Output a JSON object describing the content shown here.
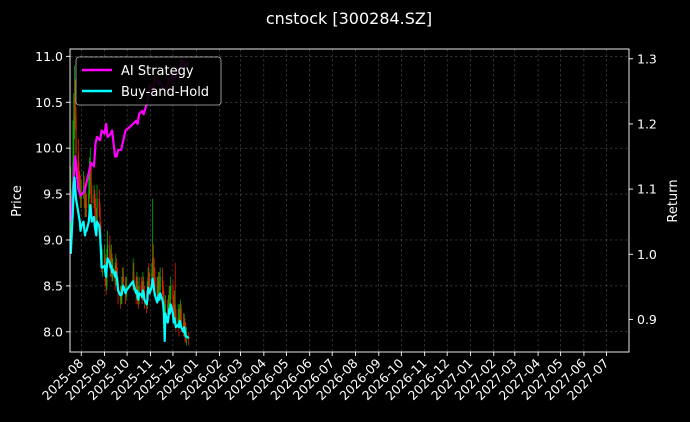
{
  "chart_data": {
    "type": "line",
    "title": "cnstock [300284.SZ]",
    "ylabel": "Price",
    "y2label": "Return",
    "ylim": [
      7.78,
      11.08
    ],
    "y2lim": [
      0.85,
      1.315
    ],
    "yticks": [
      8.0,
      8.5,
      9.0,
      9.5,
      10.0,
      10.5,
      11.0
    ],
    "y2ticks": [
      0.9,
      1.0,
      1.1,
      1.2,
      1.3
    ],
    "xlim": [
      "2025-07-17",
      "2027-07-31"
    ],
    "xticks": [
      "2025-08",
      "2025-09",
      "2025-10",
      "2025-11",
      "2025-12",
      "2026-01",
      "2026-02",
      "2026-03",
      "2026-04",
      "2026-05",
      "2026-06",
      "2026-07",
      "2026-08",
      "2026-09",
      "2026-10",
      "2026-11",
      "2026-12",
      "2027-01",
      "2027-02",
      "2027-03",
      "2027-04",
      "2027-05",
      "2027-06",
      "2027-07"
    ],
    "grid": true,
    "legend_position": "top-left",
    "colors": {
      "up": "#00b000",
      "down": "#e02000",
      "ai": "#ff00ff",
      "bh": "#00ffff",
      "background": "#000000",
      "axis": "#ffffff"
    },
    "price_series": {
      "name": "",
      "x": [
        "2025-07-18",
        "2025-07-21",
        "2025-07-22",
        "2025-07-23",
        "2025-07-24",
        "2025-07-25",
        "2025-07-28",
        "2025-07-29",
        "2025-07-30",
        "2025-07-31",
        "2025-08-01",
        "2025-08-04",
        "2025-08-05",
        "2025-08-06",
        "2025-08-07",
        "2025-08-08",
        "2025-08-11",
        "2025-08-12",
        "2025-08-13",
        "2025-08-14",
        "2025-08-15",
        "2025-08-18",
        "2025-08-19",
        "2025-08-20",
        "2025-08-21",
        "2025-08-22",
        "2025-08-25",
        "2025-08-26",
        "2025-08-27",
        "2025-08-28",
        "2025-08-29",
        "2025-09-01",
        "2025-09-02",
        "2025-09-03",
        "2025-09-04",
        "2025-09-05",
        "2025-09-08",
        "2025-09-09",
        "2025-09-10",
        "2025-09-11",
        "2025-09-12",
        "2025-09-15",
        "2025-09-16",
        "2025-09-17",
        "2025-09-18",
        "2025-09-19",
        "2025-09-22",
        "2025-09-23",
        "2025-09-24",
        "2025-09-25",
        "2025-09-26",
        "2025-09-29",
        "2025-09-30",
        "2025-10-09",
        "2025-10-10",
        "2025-10-13",
        "2025-10-14",
        "2025-10-15",
        "2025-10-16",
        "2025-10-17",
        "2025-10-20",
        "2025-10-21",
        "2025-10-22",
        "2025-10-23",
        "2025-10-24",
        "2025-10-27",
        "2025-10-28",
        "2025-10-29",
        "2025-10-30",
        "2025-10-31",
        "2025-11-03",
        "2025-11-04",
        "2025-11-05",
        "2025-11-06",
        "2025-11-07",
        "2025-11-10",
        "2025-11-11",
        "2025-11-12",
        "2025-11-13",
        "2025-11-14",
        "2025-11-17",
        "2025-11-18",
        "2025-11-19",
        "2025-11-20",
        "2025-11-21",
        "2025-11-24",
        "2025-11-25",
        "2025-11-26",
        "2025-11-27",
        "2025-11-28",
        "2025-12-01",
        "2025-12-02",
        "2025-12-03",
        "2025-12-04",
        "2025-12-05",
        "2025-12-08",
        "2025-12-09",
        "2025-12-10",
        "2025-12-11",
        "2025-12-12",
        "2025-12-15",
        "2025-12-16",
        "2025-12-17",
        "2025-12-18",
        "2025-12-19",
        "2025-12-22"
      ],
      "open": [
        9.05,
        9.55,
        9.85,
        10.25,
        10.55,
        10.35,
        9.95,
        9.75,
        9.65,
        9.55,
        9.45,
        9.5,
        9.6,
        9.45,
        9.35,
        9.4,
        9.35,
        9.5,
        9.7,
        9.8,
        9.5,
        9.4,
        9.5,
        9.35,
        9.3,
        9.15,
        9.45,
        9.35,
        9.15,
        8.95,
        8.75,
        8.75,
        8.8,
        8.6,
        8.5,
        8.75,
        8.95,
        8.8,
        8.7,
        8.8,
        8.65,
        8.7,
        8.55,
        8.75,
        8.6,
        8.55,
        8.4,
        8.35,
        8.4,
        8.45,
        8.6,
        8.55,
        8.4,
        8.5,
        8.65,
        8.55,
        8.4,
        8.55,
        8.4,
        8.35,
        8.5,
        8.45,
        8.4,
        8.55,
        8.45,
        8.35,
        8.3,
        8.45,
        8.6,
        8.55,
        8.5,
        8.65,
        8.8,
        8.7,
        8.6,
        8.5,
        8.4,
        8.5,
        8.55,
        8.45,
        8.6,
        8.5,
        8.4,
        8.25,
        8.2,
        8.3,
        8.2,
        8.3,
        8.4,
        8.35,
        8.5,
        8.35,
        8.25,
        8.3,
        8.2,
        8.1,
        8.15,
        8.1,
        8.2,
        8.25,
        8.1,
        8.05,
        8.1,
        8.0,
        7.95,
        7.95
      ],
      "close": [
        9.55,
        9.85,
        10.25,
        10.55,
        10.35,
        9.95,
        9.75,
        9.65,
        9.55,
        9.45,
        9.5,
        9.6,
        9.45,
        9.35,
        9.4,
        9.35,
        9.5,
        9.7,
        9.8,
        9.5,
        9.4,
        9.5,
        9.35,
        9.3,
        9.15,
        9.45,
        9.35,
        9.15,
        8.95,
        8.75,
        8.75,
        8.8,
        8.6,
        8.5,
        8.75,
        8.95,
        8.8,
        8.7,
        8.8,
        8.65,
        8.7,
        8.55,
        8.75,
        8.6,
        8.55,
        8.4,
        8.35,
        8.4,
        8.45,
        8.6,
        8.55,
        8.4,
        8.5,
        8.65,
        8.55,
        8.4,
        8.55,
        8.4,
        8.35,
        8.5,
        8.45,
        8.4,
        8.55,
        8.45,
        8.35,
        8.3,
        8.45,
        8.6,
        8.55,
        8.5,
        8.65,
        8.8,
        8.7,
        8.6,
        8.5,
        8.4,
        8.5,
        8.55,
        8.45,
        8.6,
        8.5,
        8.4,
        8.25,
        8.2,
        8.3,
        8.2,
        8.3,
        8.4,
        8.35,
        8.5,
        8.35,
        8.25,
        8.3,
        8.2,
        8.1,
        8.15,
        8.1,
        8.2,
        8.25,
        8.1,
        8.05,
        8.1,
        8.0,
        7.95,
        7.95,
        7.92
      ],
      "high": [
        9.8,
        10.3,
        10.6,
        10.9,
        10.75,
        10.45,
        10.1,
        9.85,
        9.75,
        9.7,
        9.65,
        9.75,
        9.7,
        9.55,
        9.55,
        9.5,
        9.7,
        9.9,
        10.0,
        9.85,
        9.6,
        9.6,
        9.55,
        9.45,
        9.35,
        9.6,
        9.55,
        9.4,
        9.2,
        8.95,
        8.9,
        8.95,
        8.85,
        8.65,
        8.9,
        9.1,
        9.05,
        8.9,
        8.95,
        8.85,
        8.8,
        8.75,
        8.85,
        8.8,
        8.7,
        8.6,
        8.5,
        8.5,
        8.6,
        8.7,
        8.7,
        8.6,
        8.6,
        8.8,
        8.75,
        8.6,
        8.65,
        8.6,
        8.5,
        8.6,
        8.6,
        8.55,
        8.65,
        8.6,
        8.5,
        8.45,
        8.55,
        8.7,
        8.75,
        8.65,
        8.75,
        9.45,
        8.95,
        8.8,
        8.7,
        8.6,
        8.6,
        8.65,
        8.65,
        8.7,
        8.7,
        8.55,
        8.45,
        8.35,
        8.4,
        8.35,
        8.4,
        8.5,
        8.5,
        8.6,
        8.55,
        8.4,
        8.45,
        8.75,
        8.25,
        8.3,
        8.25,
        8.3,
        8.35,
        8.3,
        8.2,
        8.2,
        8.15,
        8.1,
        8.05,
        8.0
      ],
      "low": [
        8.9,
        9.45,
        9.75,
        10.1,
        10.2,
        9.85,
        9.65,
        9.55,
        9.45,
        9.35,
        9.35,
        9.45,
        9.35,
        9.25,
        9.25,
        9.25,
        9.3,
        9.45,
        9.6,
        9.4,
        9.3,
        9.35,
        9.25,
        9.2,
        9.05,
        9.1,
        9.25,
        9.05,
        8.85,
        8.65,
        8.6,
        8.65,
        8.5,
        8.4,
        8.45,
        8.7,
        8.7,
        8.6,
        8.6,
        8.55,
        8.55,
        8.45,
        8.5,
        8.5,
        8.45,
        8.3,
        8.25,
        8.3,
        8.3,
        8.4,
        8.45,
        8.3,
        8.35,
        8.45,
        8.45,
        8.3,
        8.35,
        8.3,
        8.25,
        8.3,
        8.35,
        8.3,
        8.35,
        8.35,
        8.25,
        8.2,
        8.25,
        8.4,
        8.45,
        8.4,
        8.45,
        8.6,
        8.55,
        8.5,
        8.4,
        8.3,
        8.35,
        8.4,
        8.35,
        8.4,
        8.4,
        8.3,
        8.15,
        8.1,
        8.15,
        8.1,
        8.15,
        8.25,
        8.25,
        8.3,
        8.25,
        8.15,
        8.15,
        8.1,
        8.0,
        8.05,
        7.95,
        8.05,
        8.1,
        8.0,
        7.95,
        7.95,
        7.9,
        7.88,
        7.85,
        7.85
      ]
    },
    "series": [
      {
        "name": "AI Strategy",
        "axis": "right",
        "x": [
          "2025-07-18",
          "2025-07-22",
          "2025-07-24",
          "2025-07-28",
          "2025-07-31",
          "2025-08-04",
          "2025-08-06",
          "2025-08-08",
          "2025-08-12",
          "2025-08-14",
          "2025-08-18",
          "2025-08-20",
          "2025-08-22",
          "2025-08-26",
          "2025-08-28",
          "2025-09-01",
          "2025-09-03",
          "2025-09-05",
          "2025-09-09",
          "2025-09-11",
          "2025-09-15",
          "2025-09-17",
          "2025-09-19",
          "2025-09-23",
          "2025-09-25",
          "2025-09-29",
          "2025-10-09",
          "2025-10-13",
          "2025-10-15",
          "2025-10-17",
          "2025-10-21",
          "2025-10-23",
          "2025-10-27",
          "2025-10-29",
          "2025-10-31",
          "2025-11-04",
          "2025-11-06",
          "2025-11-10",
          "2025-11-12",
          "2025-11-14",
          "2025-11-18",
          "2025-11-20",
          "2025-11-24",
          "2025-11-26",
          "2025-11-28",
          "2025-12-02",
          "2025-12-04",
          "2025-12-08",
          "2025-12-10",
          "2025-12-12",
          "2025-12-16",
          "2025-12-18",
          "2025-12-22"
        ],
        "values": [
          1.05,
          1.12,
          1.15,
          1.1,
          1.09,
          1.095,
          1.1,
          1.11,
          1.13,
          1.14,
          1.135,
          1.17,
          1.18,
          1.175,
          1.19,
          1.185,
          1.2,
          1.18,
          1.185,
          1.19,
          1.15,
          1.15,
          1.16,
          1.16,
          1.17,
          1.19,
          1.2,
          1.205,
          1.2,
          1.215,
          1.22,
          1.215,
          1.23,
          1.24,
          1.26,
          1.25,
          1.265,
          1.27,
          1.26,
          1.265,
          1.255,
          1.25,
          1.26,
          1.27,
          1.265,
          1.28,
          1.27,
          1.285,
          1.28,
          1.3,
          1.29,
          1.29,
          1.295
        ]
      },
      {
        "name": "Buy-and-Hold",
        "axis": "left",
        "x": [
          "2025-07-18",
          "2025-07-21",
          "2025-07-22",
          "2025-07-23",
          "2025-07-24",
          "2025-07-25",
          "2025-07-28",
          "2025-07-29",
          "2025-07-30",
          "2025-07-31",
          "2025-08-01",
          "2025-08-04",
          "2025-08-05",
          "2025-08-06",
          "2025-08-07",
          "2025-08-08",
          "2025-08-11",
          "2025-08-12",
          "2025-08-13",
          "2025-08-14",
          "2025-08-15",
          "2025-08-18",
          "2025-08-19",
          "2025-08-20",
          "2025-08-21",
          "2025-08-22",
          "2025-08-25",
          "2025-08-26",
          "2025-08-27",
          "2025-08-28",
          "2025-08-29",
          "2025-09-01",
          "2025-09-02",
          "2025-09-03",
          "2025-09-04",
          "2025-09-05",
          "2025-09-08",
          "2025-09-09",
          "2025-09-10",
          "2025-09-11",
          "2025-09-12",
          "2025-09-15",
          "2025-09-16",
          "2025-09-17",
          "2025-09-18",
          "2025-09-19",
          "2025-09-22",
          "2025-09-23",
          "2025-09-24",
          "2025-09-25",
          "2025-09-26",
          "2025-09-29",
          "2025-09-30",
          "2025-10-09",
          "2025-10-10",
          "2025-10-13",
          "2025-10-14",
          "2025-10-15",
          "2025-10-16",
          "2025-10-17",
          "2025-10-20",
          "2025-10-21",
          "2025-10-22",
          "2025-10-23",
          "2025-10-24",
          "2025-10-27",
          "2025-10-28",
          "2025-10-29",
          "2025-10-30",
          "2025-10-31",
          "2025-11-03",
          "2025-11-04",
          "2025-11-05",
          "2025-11-06",
          "2025-11-07",
          "2025-11-10",
          "2025-11-11",
          "2025-11-12",
          "2025-11-13",
          "2025-11-14",
          "2025-11-17",
          "2025-11-18",
          "2025-11-19",
          "2025-11-20",
          "2025-11-21",
          "2025-11-24",
          "2025-11-25",
          "2025-11-26",
          "2025-11-27",
          "2025-11-28",
          "2025-12-01",
          "2025-12-02",
          "2025-12-03",
          "2025-12-04",
          "2025-12-05",
          "2025-12-08",
          "2025-12-09",
          "2025-12-10",
          "2025-12-11",
          "2025-12-12",
          "2025-12-15",
          "2025-12-16",
          "2025-12-17",
          "2025-12-18",
          "2025-12-19",
          "2025-12-22"
        ],
        "values": [
          8.85,
          9.35,
          9.62,
          9.68,
          9.55,
          9.45,
          9.3,
          9.25,
          9.2,
          9.1,
          9.15,
          9.2,
          9.12,
          9.05,
          9.1,
          9.1,
          9.2,
          9.3,
          9.38,
          9.3,
          9.2,
          9.25,
          9.15,
          9.1,
          9.05,
          9.2,
          9.15,
          9.05,
          8.9,
          8.7,
          8.7,
          8.72,
          8.65,
          8.6,
          8.72,
          8.8,
          8.75,
          8.7,
          8.72,
          8.65,
          8.68,
          8.6,
          8.65,
          8.6,
          8.55,
          8.45,
          8.4,
          8.4,
          8.42,
          8.48,
          8.5,
          8.42,
          8.45,
          8.55,
          8.5,
          8.42,
          8.45,
          8.38,
          8.35,
          8.42,
          8.4,
          8.38,
          8.45,
          8.42,
          8.35,
          8.3,
          8.35,
          8.48,
          8.45,
          8.42,
          8.5,
          8.58,
          8.52,
          8.45,
          8.4,
          8.32,
          8.35,
          8.4,
          8.35,
          8.42,
          8.35,
          8.3,
          8.2,
          7.9,
          8.2,
          8.1,
          8.15,
          8.25,
          8.2,
          8.3,
          8.2,
          8.1,
          8.15,
          8.1,
          8.05,
          8.08,
          8.05,
          8.12,
          8.1,
          8.05,
          8.0,
          8.05,
          8.0,
          7.95,
          7.95,
          7.93
        ]
      }
    ]
  }
}
